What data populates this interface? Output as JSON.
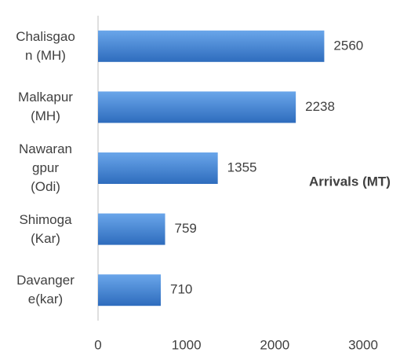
{
  "chart_data": {
    "type": "bar",
    "orientation": "horizontal",
    "legend_label": "Arrivals (MT)",
    "categories": [
      "Chalisgaon (MH)",
      "Malkapur (MH)",
      "Nawarangpur (Odi)",
      "Shimoga (Kar)",
      "Davangere(kar)"
    ],
    "values": [
      2560,
      2238,
      1355,
      759,
      710
    ],
    "color": "#3f7fcf",
    "xlim": [
      0,
      3000
    ],
    "xticks": [
      0,
      1000,
      2000,
      3000
    ],
    "grid": false
  }
}
